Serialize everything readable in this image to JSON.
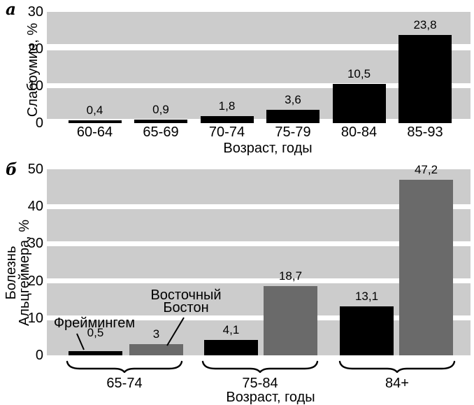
{
  "figure": {
    "panel_a_label": "а",
    "panel_b_label": "б"
  },
  "chart_data": [
    {
      "type": "bar",
      "panel": "а",
      "title": "",
      "ylabel": "Слабоумие, %",
      "xlabel": "Возраст, годы",
      "categories": [
        "60-64",
        "65-69",
        "70-74",
        "75-79",
        "80-84",
        "85-93"
      ],
      "values": [
        0.4,
        0.9,
        1.8,
        3.6,
        10.5,
        23.8
      ],
      "value_labels": [
        "0,4",
        "0,9",
        "1,8",
        "3,6",
        "10,5",
        "23,8"
      ],
      "ylim": [
        0,
        30
      ],
      "yticks": [
        0,
        10,
        20,
        30
      ],
      "bar_color": "#000000",
      "plot_band_color": "#cccccc",
      "grid": "white horizontal stripes at each ytick",
      "legend": "none"
    },
    {
      "type": "bar",
      "panel": "б",
      "title": "",
      "ylabel": "Болезнь Альцгеймера, %",
      "ylabel_lines": [
        "Болезнь",
        "Альцгеймера, %"
      ],
      "xlabel": "Возраст, годы",
      "categories": [
        "65-74",
        "75-84",
        "84+"
      ],
      "series": [
        {
          "name": "Фреймингем",
          "color": "#000000",
          "values": [
            0.5,
            4.1,
            13.1
          ],
          "value_labels": [
            "0,5",
            "4,1",
            "13,1"
          ]
        },
        {
          "name": "Восточный Бостон",
          "color": "#6a6a6a",
          "values": [
            3,
            18.7,
            47.2
          ],
          "value_labels": [
            "3",
            "18,7",
            "47,2"
          ]
        }
      ],
      "ylim": [
        0,
        50
      ],
      "yticks": [
        0,
        10,
        20,
        30,
        40,
        50
      ],
      "plot_band_color": "#cccccc",
      "grid": "white horizontal stripes at each ytick",
      "legend": "inline annotations with leader lines",
      "annotations": [
        {
          "text": "Фреймингем",
          "target": "black bar, group 65-74"
        },
        {
          "text_lines": [
            "Восточный",
            "Бостон"
          ],
          "target": "gray bar, group 65-74"
        }
      ]
    }
  ]
}
